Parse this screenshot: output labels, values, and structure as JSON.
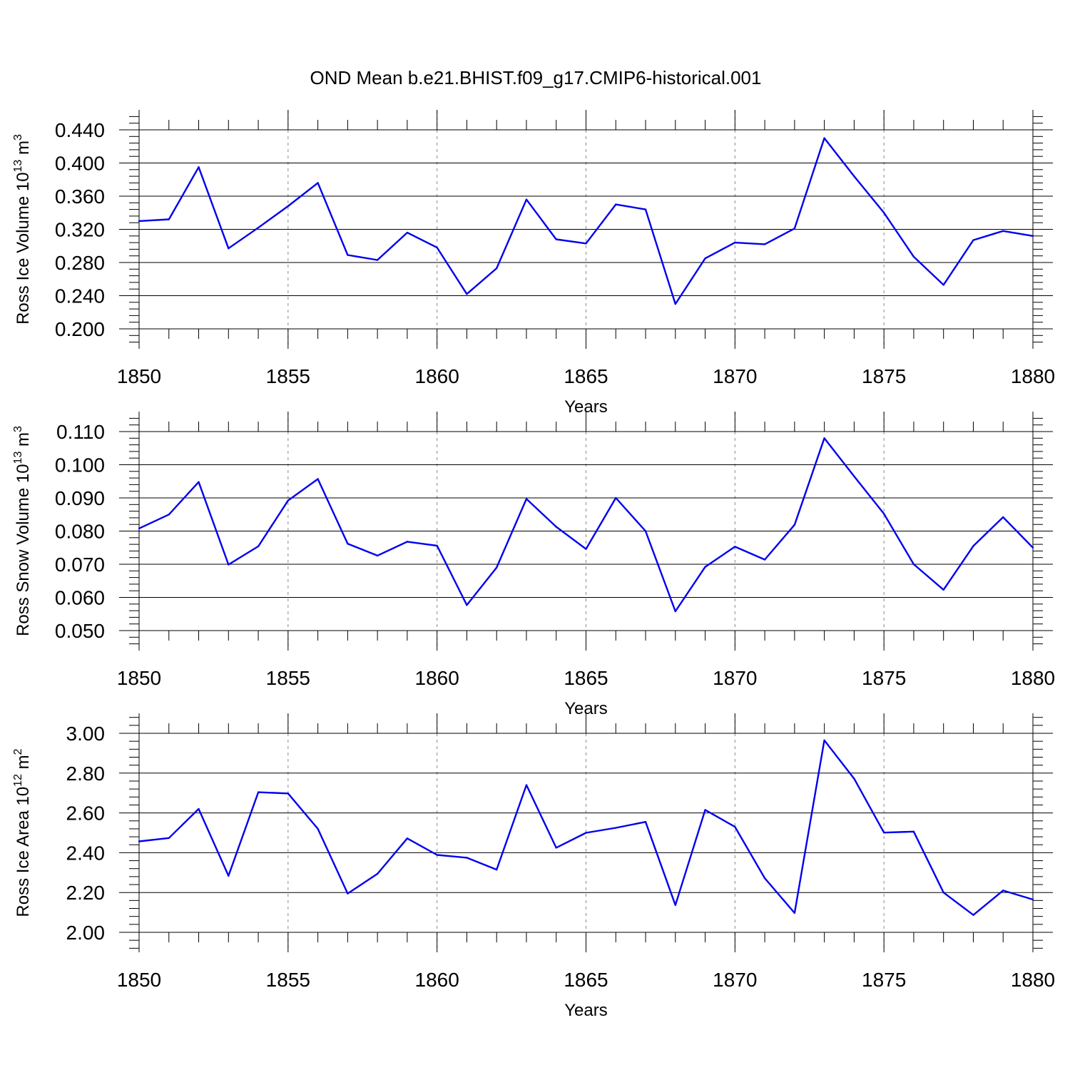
{
  "title": "OND Mean b.e21.BHIST.f09_g17.CMIP6-historical.001",
  "colors": {
    "line": "#0000ee",
    "grid": "#888888"
  },
  "chart_data": [
    {
      "type": "line",
      "xlabel": "Years",
      "ylabel": {
        "main": "Ross Ice Volume 10",
        "exp": "13",
        "unit": " m",
        "unit_exp": "3"
      },
      "xlim": [
        1850,
        1880
      ],
      "ylim": [
        0.2,
        0.44
      ],
      "yticks": [
        "0.200",
        "0.240",
        "0.280",
        "0.320",
        "0.360",
        "0.400",
        "0.440"
      ],
      "xticks": [
        "1850",
        "1855",
        "1860",
        "1865",
        "1870",
        "1875",
        "1880"
      ],
      "grid": "x-dashed",
      "x": [
        1850,
        1851,
        1852,
        1853,
        1854,
        1855,
        1856,
        1857,
        1858,
        1859,
        1860,
        1861,
        1862,
        1863,
        1864,
        1865,
        1866,
        1867,
        1868,
        1869,
        1870,
        1871,
        1872,
        1873,
        1874,
        1875,
        1876,
        1877,
        1878,
        1879,
        1880
      ],
      "values": [
        0.33,
        0.332,
        0.395,
        0.297,
        0.322,
        0.348,
        0.376,
        0.289,
        0.283,
        0.316,
        0.298,
        0.242,
        0.273,
        0.356,
        0.308,
        0.303,
        0.35,
        0.344,
        0.23,
        0.285,
        0.304,
        0.302,
        0.321,
        0.43,
        0.384,
        0.34,
        0.287,
        0.253,
        0.307,
        0.318,
        0.312
      ]
    },
    {
      "type": "line",
      "xlabel": "Years",
      "ylabel": {
        "main": "Ross Snow Volume 10",
        "exp": "13",
        "unit": " m",
        "unit_exp": "3"
      },
      "xlim": [
        1850,
        1880
      ],
      "ylim": [
        0.05,
        0.11
      ],
      "yticks": [
        "0.050",
        "0.060",
        "0.070",
        "0.080",
        "0.090",
        "0.100",
        "0.110"
      ],
      "xticks": [
        "1850",
        "1855",
        "1860",
        "1865",
        "1870",
        "1875",
        "1880"
      ],
      "grid": "x-dashed",
      "x": [
        1850,
        1851,
        1852,
        1853,
        1854,
        1855,
        1856,
        1857,
        1858,
        1859,
        1860,
        1861,
        1862,
        1863,
        1864,
        1865,
        1866,
        1867,
        1868,
        1869,
        1870,
        1871,
        1872,
        1873,
        1874,
        1875,
        1876,
        1877,
        1878,
        1879,
        1880
      ],
      "values": [
        0.0808,
        0.085,
        0.0948,
        0.0699,
        0.0754,
        0.0892,
        0.0957,
        0.0762,
        0.0726,
        0.0768,
        0.0756,
        0.0577,
        0.069,
        0.0897,
        0.0813,
        0.0746,
        0.09,
        0.08,
        0.0558,
        0.0692,
        0.0753,
        0.0714,
        0.0819,
        0.108,
        0.0965,
        0.0852,
        0.07,
        0.0623,
        0.0755,
        0.0842,
        0.075
      ]
    },
    {
      "type": "line",
      "xlabel": "Years",
      "ylabel": {
        "main": "Ross Ice Area 10",
        "exp": "12",
        "unit": " m",
        "unit_exp": "2"
      },
      "xlim": [
        1850,
        1880
      ],
      "ylim": [
        2.0,
        3.0
      ],
      "yticks": [
        "2.00",
        "2.20",
        "2.40",
        "2.60",
        "2.80",
        "3.00"
      ],
      "xticks": [
        "1850",
        "1855",
        "1860",
        "1865",
        "1870",
        "1875",
        "1880"
      ],
      "grid": "x-dashed",
      "x": [
        1850,
        1851,
        1852,
        1853,
        1854,
        1855,
        1856,
        1857,
        1858,
        1859,
        1860,
        1861,
        1862,
        1863,
        1864,
        1865,
        1866,
        1867,
        1868,
        1869,
        1870,
        1871,
        1872,
        1873,
        1874,
        1875,
        1876,
        1877,
        1878,
        1879,
        1880
      ],
      "values": [
        2.457,
        2.474,
        2.62,
        2.284,
        2.704,
        2.698,
        2.52,
        2.195,
        2.294,
        2.472,
        2.389,
        2.375,
        2.315,
        2.74,
        2.425,
        2.5,
        2.525,
        2.555,
        2.137,
        2.615,
        2.53,
        2.272,
        2.097,
        2.965,
        2.772,
        2.501,
        2.506,
        2.2,
        2.087,
        2.21,
        2.165
      ]
    }
  ]
}
